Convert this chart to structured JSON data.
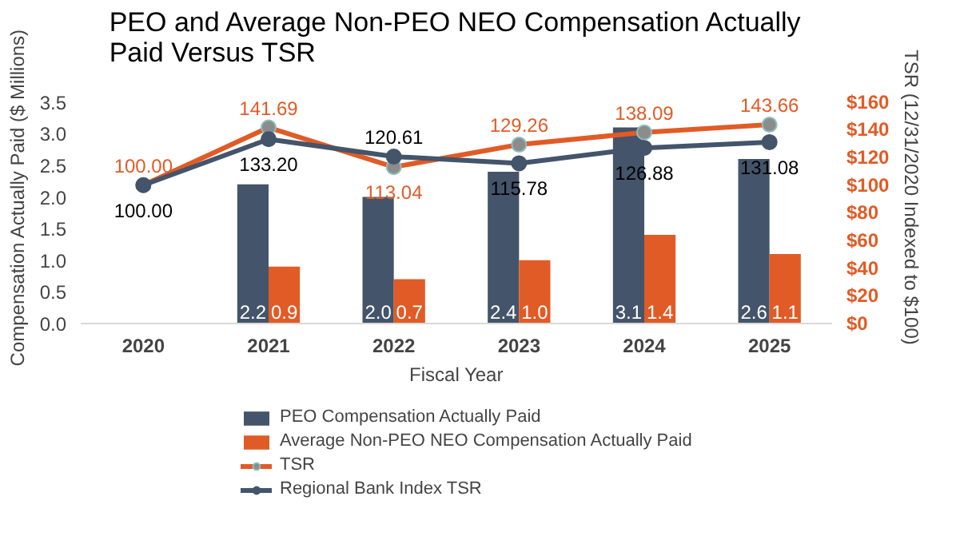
{
  "chart_data": {
    "type": "bar",
    "title": "PEO and Average Non-PEO NEO Compensation Actually Paid Versus TSR",
    "categories": [
      "2020",
      "2021",
      "2022",
      "2023",
      "2024",
      "2025"
    ],
    "xlabel": "Fiscal Year",
    "ylabel": "Compensation Actually Paid ($ Millions)",
    "y2label": "TSR (12/31/2020 Indexed to $100)",
    "ylim": [
      0,
      3.5
    ],
    "yticks": [
      {
        "value": 0,
        "label": "0.0"
      },
      {
        "value": 0.5,
        "label": "0.5"
      },
      {
        "value": 1,
        "label": "1.0"
      },
      {
        "value": 1.5,
        "label": "1.5"
      },
      {
        "value": 2,
        "label": "2.0"
      },
      {
        "value": 2.5,
        "label": "2.5"
      },
      {
        "value": 3,
        "label": "3.0"
      },
      {
        "value": 3.5,
        "label": "3.5"
      }
    ],
    "y2lim": [
      0,
      160
    ],
    "y2ticks": [
      {
        "value": 0,
        "label": "$0"
      },
      {
        "value": 20,
        "label": "$20"
      },
      {
        "value": 40,
        "label": "$40"
      },
      {
        "value": 60,
        "label": "$60"
      },
      {
        "value": 80,
        "label": "$80"
      },
      {
        "value": 100,
        "label": "$100"
      },
      {
        "value": 120,
        "label": "$120"
      },
      {
        "value": 140,
        "label": "$140"
      },
      {
        "value": 160,
        "label": "$160"
      }
    ],
    "series": [
      {
        "name": "PEO Compensation Actually Paid",
        "color": "#44546a",
        "values": [
          null,
          2.2,
          2.0,
          2.4,
          3.1,
          2.6
        ],
        "value_labels": [
          null,
          "2.2",
          "2.0",
          "2.4",
          "3.1",
          "2.6"
        ]
      },
      {
        "name": "Average Non-PEO NEO Compensation Actually Paid",
        "color": "#e15b26",
        "values": [
          null,
          0.9,
          0.7,
          1.0,
          1.4,
          1.1
        ],
        "value_labels": [
          null,
          "0.9",
          "0.7",
          "1.0",
          "1.4",
          "1.1"
        ]
      },
      {
        "name": "TSR",
        "type": "line",
        "axis": "y2",
        "color": "#e15b26",
        "values": [
          100.0,
          141.69,
          113.04,
          129.26,
          138.09,
          143.66
        ],
        "value_labels": [
          "100.00",
          "141.69",
          "113.04",
          "129.26",
          "138.09",
          "143.66"
        ]
      },
      {
        "name": "Regional Bank Index TSR",
        "type": "line",
        "axis": "y2",
        "color": "#44546a",
        "values": [
          100.0,
          133.2,
          120.61,
          115.78,
          126.88,
          131.08
        ],
        "value_labels": [
          "100.00",
          "133.20",
          "120.61",
          "115.78",
          "126.88",
          "131.08"
        ]
      }
    ],
    "marker": "circle",
    "legend": "bottom",
    "grid": false
  }
}
